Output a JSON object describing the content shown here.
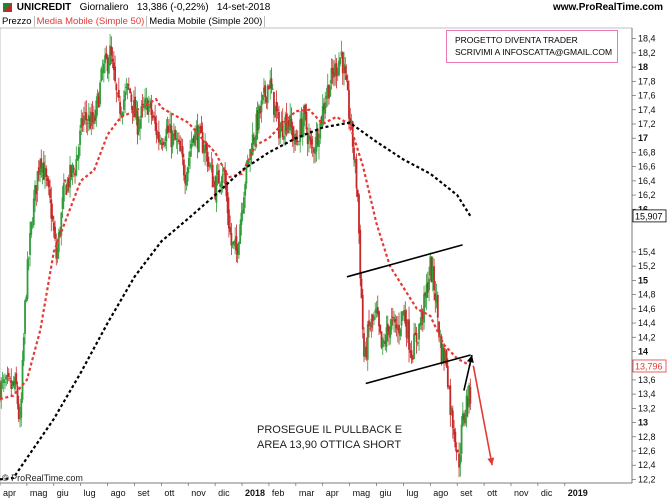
{
  "header": {
    "symbol": "UNICREDIT",
    "timeframe": "Giornaliero",
    "price": "13,386 (-0,22%)",
    "date": "14-set-2018",
    "site": "www.ProRealTime.com"
  },
  "legend": [
    "Prezzo",
    "Media Mobile (Simple 50)",
    "Media Mobile (Simple 200)"
  ],
  "colors": {
    "up": "#2e9d3a",
    "down": "#c62828",
    "sma50": "#e53935",
    "sma200": "#000000",
    "trend": "#000000",
    "arrow_up": "#000000",
    "arrow_down": "#e53935",
    "box_border": "#e57bb0"
  },
  "note_box": [
    "PROGETTO DIVENTA TRADER",
    "SCRIVIMI A INFOSCATTA@GMAIL.COM"
  ],
  "annotation": [
    "PROSEGUE IL PULLBACK E",
    "AREA 13,90 OTTICA SHORT"
  ],
  "credit": "© ProRealTime.com",
  "chart_data": {
    "type": "candlestick",
    "title": "UNICREDIT Giornaliero",
    "y_range": [
      12.15,
      18.55
    ],
    "x_range": [
      0,
      23.5
    ],
    "x_unit": "months since 2017-04-01",
    "x_ticks": [
      {
        "t": 0,
        "label": "apr"
      },
      {
        "t": 1,
        "label": "mag"
      },
      {
        "t": 2,
        "label": "giu"
      },
      {
        "t": 3,
        "label": "lug"
      },
      {
        "t": 4,
        "label": "ago"
      },
      {
        "t": 5,
        "label": "set"
      },
      {
        "t": 6,
        "label": "ott"
      },
      {
        "t": 7,
        "label": "nov"
      },
      {
        "t": 8,
        "label": "dic"
      },
      {
        "t": 9,
        "label": "2018",
        "bold": true
      },
      {
        "t": 10,
        "label": "feb"
      },
      {
        "t": 11,
        "label": "mar"
      },
      {
        "t": 12,
        "label": "apr"
      },
      {
        "t": 13,
        "label": "mag"
      },
      {
        "t": 14,
        "label": "giu"
      },
      {
        "t": 15,
        "label": "lug"
      },
      {
        "t": 16,
        "label": "ago"
      },
      {
        "t": 17,
        "label": "set"
      },
      {
        "t": 18,
        "label": "ott"
      },
      {
        "t": 19,
        "label": "nov"
      },
      {
        "t": 20,
        "label": "dic"
      },
      {
        "t": 21,
        "label": "2019",
        "bold": true
      }
    ],
    "y_ticks": [
      {
        "v": 18.4,
        "label": "18,4"
      },
      {
        "v": 18.2,
        "label": "18,2"
      },
      {
        "v": 18.0,
        "label": "18",
        "bold": true
      },
      {
        "v": 17.8,
        "label": "17,8"
      },
      {
        "v": 17.6,
        "label": "17,6"
      },
      {
        "v": 17.4,
        "label": "17,4"
      },
      {
        "v": 17.2,
        "label": "17,2"
      },
      {
        "v": 17.0,
        "label": "17",
        "bold": true
      },
      {
        "v": 16.8,
        "label": "16,8"
      },
      {
        "v": 16.6,
        "label": "16,6"
      },
      {
        "v": 16.4,
        "label": "16,4"
      },
      {
        "v": 16.2,
        "label": "16,2"
      },
      {
        "v": 16.0,
        "label": "16",
        "bold": true
      },
      {
        "v": 15.4,
        "label": "15,4"
      },
      {
        "v": 15.2,
        "label": "15,2"
      },
      {
        "v": 15.0,
        "label": "15",
        "bold": true
      },
      {
        "v": 14.8,
        "label": "14,8"
      },
      {
        "v": 14.6,
        "label": "14,6"
      },
      {
        "v": 14.4,
        "label": "14,4"
      },
      {
        "v": 14.2,
        "label": "14,2"
      },
      {
        "v": 14.0,
        "label": "14",
        "bold": true
      },
      {
        "v": 13.6,
        "label": "13,6"
      },
      {
        "v": 13.4,
        "label": "13,4"
      },
      {
        "v": 13.2,
        "label": "13,2"
      },
      {
        "v": 13.0,
        "label": "13",
        "bold": true
      },
      {
        "v": 12.8,
        "label": "12,8"
      },
      {
        "v": 12.6,
        "label": "12,6"
      },
      {
        "v": 12.4,
        "label": "12,4"
      },
      {
        "v": 12.2,
        "label": "12,2"
      }
    ],
    "value_badges": [
      {
        "v": 15.907,
        "label": "15,907",
        "color": "#000000"
      },
      {
        "v": 13.796,
        "label": "13,796",
        "color": "#e53935"
      }
    ],
    "price_path": [
      [
        0.0,
        13.5
      ],
      [
        0.6,
        13.5
      ],
      [
        0.75,
        12.9
      ],
      [
        0.95,
        14.8
      ],
      [
        1.2,
        15.9
      ],
      [
        1.5,
        16.8
      ],
      [
        1.9,
        16.0
      ],
      [
        2.1,
        15.3
      ],
      [
        2.4,
        16.3
      ],
      [
        2.8,
        16.6
      ],
      [
        3.1,
        17.3
      ],
      [
        3.5,
        17.2
      ],
      [
        3.8,
        17.9
      ],
      [
        4.1,
        18.2
      ],
      [
        4.4,
        17.4
      ],
      [
        4.8,
        17.7
      ],
      [
        5.1,
        17.2
      ],
      [
        5.5,
        17.5
      ],
      [
        5.9,
        17.0
      ],
      [
        6.2,
        17.1
      ],
      [
        6.6,
        16.9
      ],
      [
        6.9,
        16.5
      ],
      [
        7.2,
        17.1
      ],
      [
        7.6,
        16.9
      ],
      [
        8.0,
        16.3
      ],
      [
        8.3,
        16.6
      ],
      [
        8.6,
        15.5
      ],
      [
        8.8,
        15.4
      ],
      [
        9.1,
        16.4
      ],
      [
        9.4,
        17.0
      ],
      [
        9.7,
        17.4
      ],
      [
        10.0,
        17.8
      ],
      [
        10.4,
        17.1
      ],
      [
        10.7,
        17.3
      ],
      [
        11.0,
        16.9
      ],
      [
        11.3,
        17.3
      ],
      [
        11.6,
        16.8
      ],
      [
        11.9,
        17.2
      ],
      [
        12.1,
        17.6
      ],
      [
        12.4,
        17.9
      ],
      [
        12.7,
        18.2
      ],
      [
        12.9,
        17.6
      ],
      [
        13.1,
        17.0
      ],
      [
        13.3,
        16.2
      ],
      [
        13.4,
        15.1
      ],
      [
        13.55,
        13.8
      ],
      [
        13.7,
        14.3
      ],
      [
        14.0,
        14.5
      ],
      [
        14.2,
        14.0
      ],
      [
        14.5,
        14.4
      ],
      [
        14.8,
        14.3
      ],
      [
        15.0,
        14.6
      ],
      [
        15.3,
        14.0
      ],
      [
        15.5,
        14.2
      ],
      [
        15.8,
        14.7
      ],
      [
        16.0,
        15.2
      ],
      [
        16.2,
        14.8
      ],
      [
        16.4,
        14.0
      ],
      [
        16.6,
        13.9
      ],
      [
        16.75,
        13.2
      ],
      [
        16.9,
        12.9
      ],
      [
        17.05,
        12.4
      ],
      [
        17.2,
        13.0
      ],
      [
        17.35,
        13.3
      ],
      [
        17.5,
        13.4
      ]
    ],
    "series": [
      {
        "name": "Media Mobile (Simple 50)",
        "style": "dashed-red",
        "points": [
          [
            0.0,
            13.33
          ],
          [
            0.5,
            13.38
          ],
          [
            1.0,
            13.6
          ],
          [
            1.5,
            14.3
          ],
          [
            2.0,
            15.4
          ],
          [
            2.5,
            15.9
          ],
          [
            3.0,
            16.4
          ],
          [
            3.5,
            16.55
          ],
          [
            4.0,
            17.05
          ],
          [
            4.5,
            17.3
          ],
          [
            5.0,
            17.38
          ],
          [
            5.5,
            17.48
          ],
          [
            5.8,
            17.55
          ],
          [
            6.0,
            17.43
          ],
          [
            6.5,
            17.32
          ],
          [
            7.0,
            17.22
          ],
          [
            7.5,
            17.0
          ],
          [
            8.0,
            16.8
          ],
          [
            8.5,
            16.45
          ],
          [
            9.0,
            16.5
          ],
          [
            9.5,
            16.9
          ],
          [
            10.0,
            17.0
          ],
          [
            10.5,
            17.2
          ],
          [
            11.0,
            17.38
          ],
          [
            11.5,
            17.4
          ],
          [
            12.0,
            17.2
          ],
          [
            12.5,
            17.3
          ],
          [
            13.0,
            17.2
          ],
          [
            13.5,
            16.6
          ],
          [
            14.0,
            15.8
          ],
          [
            14.5,
            15.2
          ],
          [
            15.0,
            14.9
          ],
          [
            15.5,
            14.6
          ],
          [
            16.0,
            14.5
          ],
          [
            16.5,
            14.1
          ],
          [
            17.0,
            13.9
          ],
          [
            17.5,
            13.8
          ]
        ]
      },
      {
        "name": "Media Mobile (Simple 200)",
        "style": "dashed-black",
        "points": [
          [
            0.0,
            12.2
          ],
          [
            0.5,
            12.22
          ],
          [
            1.0,
            12.5
          ],
          [
            2.0,
            13.05
          ],
          [
            3.0,
            13.7
          ],
          [
            4.0,
            14.4
          ],
          [
            5.0,
            15.05
          ],
          [
            6.0,
            15.55
          ],
          [
            7.0,
            15.87
          ],
          [
            8.0,
            16.2
          ],
          [
            9.0,
            16.55
          ],
          [
            10.0,
            16.8
          ],
          [
            11.0,
            17.0
          ],
          [
            12.0,
            17.15
          ],
          [
            13.0,
            17.22
          ],
          [
            14.0,
            16.95
          ],
          [
            15.0,
            16.7
          ],
          [
            16.0,
            16.5
          ],
          [
            17.0,
            16.2
          ],
          [
            17.5,
            15.9
          ]
        ]
      }
    ],
    "trendlines": [
      {
        "from": [
          12.9,
          15.05
        ],
        "to": [
          17.2,
          15.5
        ]
      },
      {
        "from": [
          13.6,
          13.55
        ],
        "to": [
          17.5,
          13.95
        ]
      }
    ],
    "arrows": [
      {
        "from": [
          17.25,
          13.45
        ],
        "to": [
          17.55,
          13.95
        ],
        "color": "#000000"
      },
      {
        "from": [
          17.6,
          13.8
        ],
        "to": [
          18.3,
          12.4
        ],
        "color": "#e53935"
      }
    ]
  }
}
